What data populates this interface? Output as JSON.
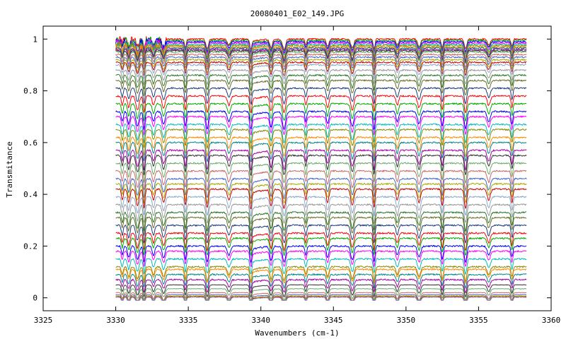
{
  "chart_data": {
    "type": "line",
    "title": "20080401_E02_149.JPG",
    "xlabel": "Wavenumbers (cm-1)",
    "ylabel": "Transmitance",
    "xlim": [
      3325,
      3360
    ],
    "ylim": [
      -0.05,
      1.05
    ],
    "x_range": [
      3330,
      3358.3
    ],
    "x_ticks": [
      "3325",
      "3330",
      "3335",
      "3340",
      "3345",
      "3350",
      "3355",
      "3360"
    ],
    "y_ticks": [
      "0",
      "0.2",
      "0.4",
      "0.6",
      "0.8",
      "1"
    ],
    "grid": false,
    "absorption_lines_cm1": [
      3330.45,
      3330.9,
      3331.5,
      3331.95,
      3332.6,
      3333.3,
      3334.8,
      3336.3,
      3337.8,
      3339.3,
      3340.7,
      3341.6,
      3343.1,
      3344.6,
      3346.3,
      3347.8,
      3349.4,
      3350.9,
      3352.5,
      3354.1,
      3355.7,
      3357.3
    ],
    "series_baseline_transmittance": [
      1.0,
      0.995,
      0.99,
      0.985,
      0.98,
      0.975,
      0.97,
      0.965,
      0.96,
      0.955,
      0.95,
      0.94,
      0.93,
      0.92,
      0.91,
      0.9,
      0.88,
      0.86,
      0.84,
      0.81,
      0.78,
      0.75,
      0.72,
      0.7,
      0.67,
      0.65,
      0.62,
      0.6,
      0.57,
      0.55,
      0.52,
      0.49,
      0.46,
      0.44,
      0.42,
      0.39,
      0.36,
      0.33,
      0.31,
      0.28,
      0.25,
      0.23,
      0.2,
      0.18,
      0.15,
      0.12,
      0.11,
      0.09,
      0.07,
      0.05,
      0.035,
      0.02,
      0.012,
      0.007,
      0.004,
      0.002
    ],
    "series_colors": [
      "#ff0000",
      "#00aa00",
      "#0000ff",
      "#ff00ff",
      "#00bbbb",
      "#888800",
      "#ff8800",
      "#008888",
      "#aa00aa",
      "#333333",
      "#66aa66",
      "#cc6666",
      "#4466cc",
      "#aaaa00",
      "#cc0000",
      "#88aacc",
      "#999999",
      "#2a7a2a",
      "#6b6b2a",
      "#1a3a7a"
    ]
  }
}
